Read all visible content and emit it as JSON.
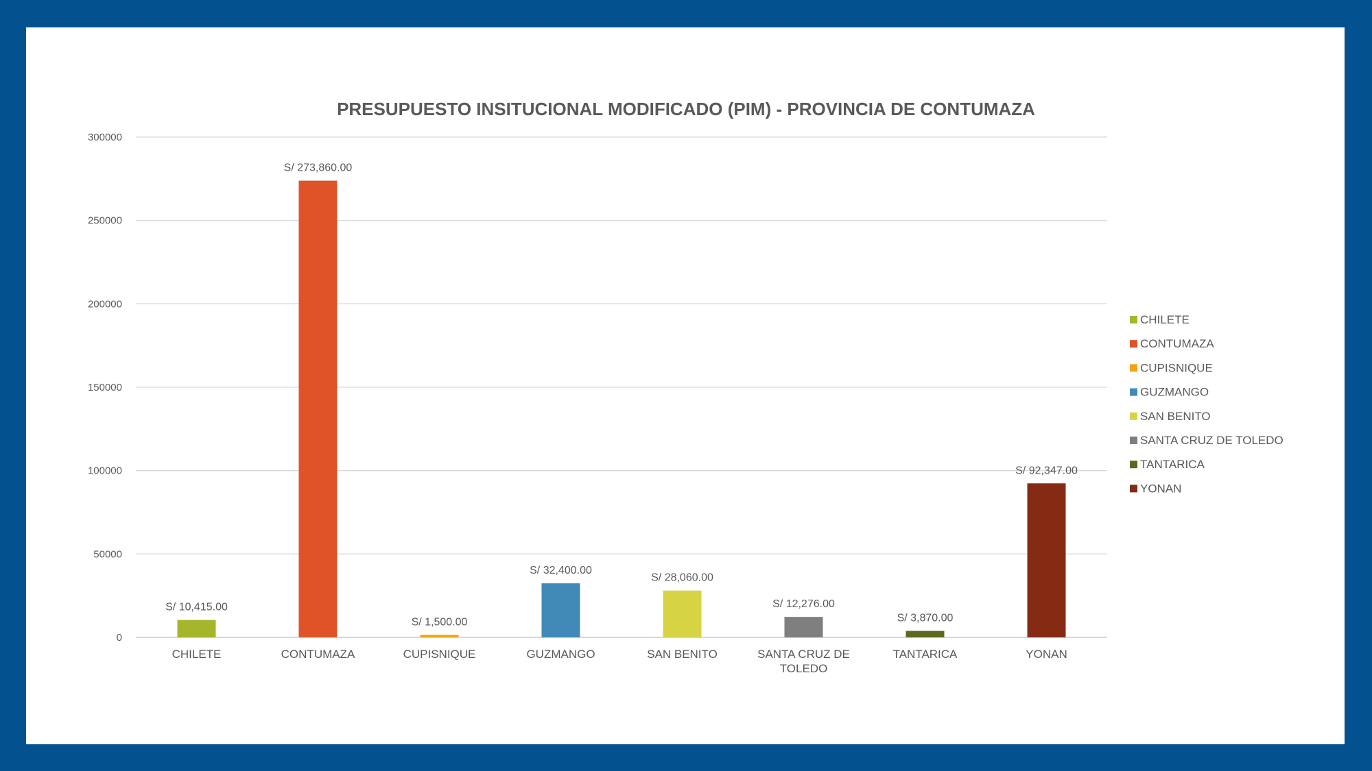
{
  "chart_data": {
    "type": "bar",
    "title": "PRESUPUESTO INSITUCIONAL MODIFICADO (PIM) - PROVINCIA DE CONTUMAZA",
    "xlabel": "",
    "ylabel": "",
    "ylim": [
      0,
      300000
    ],
    "yticks": [
      "0",
      "50000",
      "100000",
      "150000",
      "200000",
      "250000",
      "300000"
    ],
    "grid": true,
    "legend_position": "right",
    "categories": [
      "CHILETE",
      "CONTUMAZA",
      "CUPISNIQUE",
      "GUZMANGO",
      "SAN BENITO",
      "SANTA CRUZ DE TOLEDO",
      "TANTARICA",
      "YONAN"
    ],
    "category_lines": [
      [
        "CHILETE"
      ],
      [
        "CONTUMAZA"
      ],
      [
        "CUPISNIQUE"
      ],
      [
        "GUZMANGO"
      ],
      [
        "SAN BENITO"
      ],
      [
        "SANTA CRUZ DE",
        "TOLEDO"
      ],
      [
        "TANTARICA"
      ],
      [
        "YONAN"
      ]
    ],
    "values": [
      10415,
      273860,
      1500,
      32400,
      28060,
      12276,
      3870,
      92347
    ],
    "data_labels": [
      "S/ 10,415.00",
      "S/ 273,860.00",
      "S/ 1,500.00",
      "S/ 32,400.00",
      "S/ 28,060.00",
      "S/ 12,276.00",
      "S/ 3,870.00",
      "S/ 92,347.00"
    ],
    "colors": [
      "#a5b62a",
      "#e05328",
      "#f5a30e",
      "#418ab7",
      "#d7d444",
      "#7f7f7f",
      "#5c6a1e",
      "#852b14"
    ],
    "legend": [
      "CHILETE",
      "CONTUMAZA",
      "CUPISNIQUE",
      "GUZMANGO",
      "SAN BENITO",
      "SANTA CRUZ DE TOLEDO",
      "TANTARICA",
      "YONAN"
    ]
  }
}
